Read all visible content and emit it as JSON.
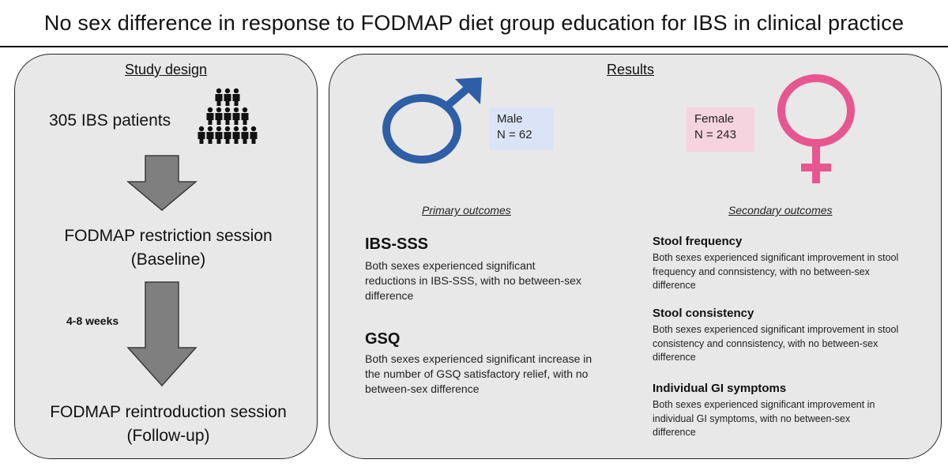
{
  "title": "No sex difference in response to FODMAP diet group education for IBS in clinical practice",
  "study_design": {
    "heading": "Study design",
    "patients": "305 IBS patients",
    "step1_line1": "FODMAP restriction session",
    "step1_line2": "(Baseline)",
    "interval": "4-8 weeks",
    "step2_line1": "FODMAP reintroduction session",
    "step2_line2": "(Follow-up)",
    "icons": {
      "people": "people-group-icon",
      "arrow": "down-arrow-icon"
    }
  },
  "results": {
    "heading": "Results",
    "male": {
      "label": "Male",
      "n": "N = 62",
      "color": "#2e5ea6",
      "icon": "male-symbol-icon"
    },
    "female": {
      "label": "Female",
      "n": "N = 243",
      "color": "#e8568f",
      "icon": "female-symbol-icon"
    },
    "primary": {
      "heading": "Primary outcomes",
      "items": [
        {
          "title": "IBS-SSS",
          "lines": [
            "Both sexes experienced significant",
            "reductions in IBS-SSS, with no between-sex",
            "difference"
          ]
        },
        {
          "title": "GSQ",
          "lines": [
            "Both sexes experienced significant increase in",
            "the number of GSQ satisfactory relief, with no",
            "between-sex difference"
          ]
        }
      ]
    },
    "secondary": {
      "heading": "Secondary outcomes",
      "items": [
        {
          "title": "Stool frequency",
          "lines": [
            "Both sexes experienced significant improvement in stool",
            "frequency and connsistency, with no between-sex",
            "difference"
          ]
        },
        {
          "title": "Stool consistency",
          "lines": [
            "Both sexes experienced significant improvement in stool",
            "consistency and connsistency, with no between-sex",
            "difference"
          ]
        },
        {
          "title": "Individual GI symptoms",
          "lines": [
            "Both sexes experienced significant improvement in",
            "individual GI symptoms, with no between-sex",
            "difference"
          ]
        }
      ]
    }
  }
}
